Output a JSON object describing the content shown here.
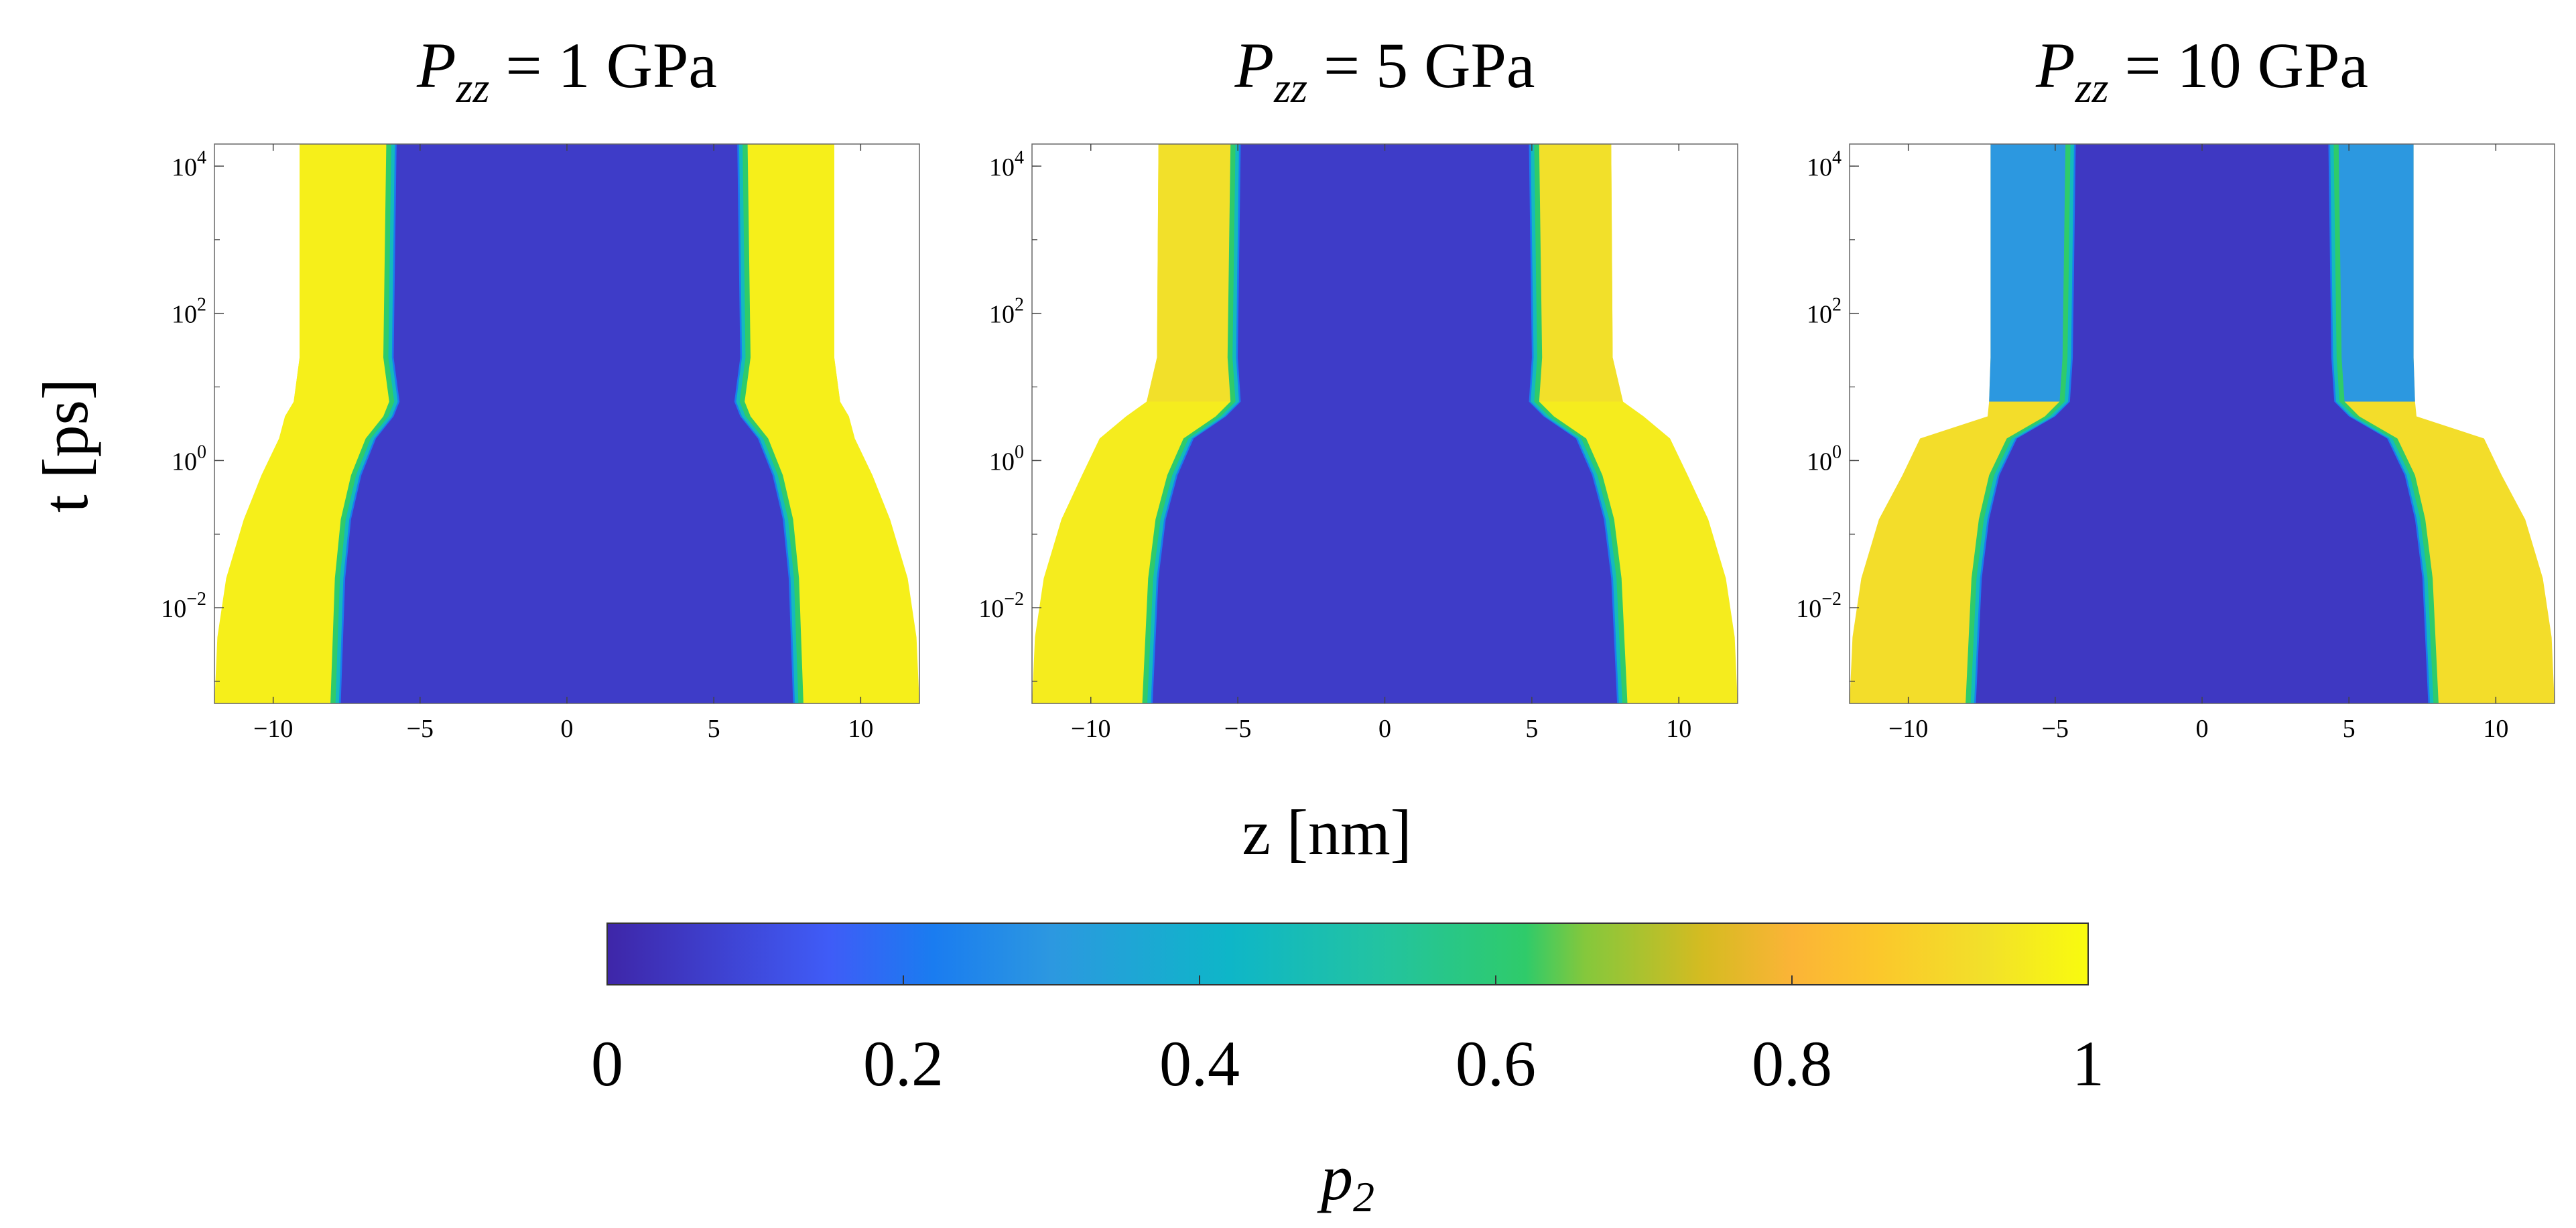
{
  "chart_data": {
    "type": "heatmap",
    "shared": {
      "xlabel": "z [nm]",
      "ylabel": "t [ps]",
      "xlim": [
        -12,
        12
      ],
      "xticks": [
        -10,
        -5,
        0,
        5,
        10
      ],
      "xtick_labels": [
        "−10",
        "−5",
        "0",
        "5",
        "10"
      ],
      "ylim_log10": [
        -3.3,
        4.3
      ],
      "yticks_log10": [
        -2,
        0,
        2,
        4
      ],
      "ytick_labels": [
        {
          "base": "10",
          "exp": "−2"
        },
        {
          "base": "10",
          "exp": "0"
        },
        {
          "base": "10",
          "exp": "2"
        },
        {
          "base": "10",
          "exp": "4"
        }
      ]
    },
    "panels": [
      {
        "title_italic": "P",
        "title_sub": "zz",
        "title_value": " = 1 GPa",
        "profile": [
          [
            -3.3,
            12.0
          ],
          [
            -2.4,
            11.9
          ],
          [
            -1.6,
            11.6
          ],
          [
            -0.8,
            11.0
          ],
          [
            -0.2,
            10.4
          ],
          [
            0.3,
            9.8
          ],
          [
            0.6,
            9.6
          ],
          [
            0.8,
            9.3
          ],
          [
            1.4,
            9.1
          ],
          [
            4.3,
            9.1
          ]
        ],
        "interface": [
          [
            -3.3,
            7.7
          ],
          [
            -1.6,
            7.55
          ],
          [
            -0.8,
            7.35
          ],
          [
            -0.2,
            7.0
          ],
          [
            0.3,
            6.5
          ],
          [
            0.6,
            5.9
          ],
          [
            0.8,
            5.7
          ],
          [
            1.4,
            5.9
          ],
          [
            4.3,
            5.8
          ]
        ],
        "core_p2": 0.06,
        "shell_p2": 0.97,
        "outer_p2": 0.97
      },
      {
        "title_italic": "P",
        "title_sub": "zz",
        "title_value": " = 5 GPa",
        "profile": [
          [
            -3.3,
            12.0
          ],
          [
            -2.4,
            11.9
          ],
          [
            -1.6,
            11.6
          ],
          [
            -0.8,
            11.0
          ],
          [
            -0.2,
            10.3
          ],
          [
            0.3,
            9.7
          ],
          [
            0.6,
            8.8
          ],
          [
            0.8,
            8.1
          ],
          [
            1.4,
            7.75
          ],
          [
            4.3,
            7.7
          ]
        ],
        "interface": [
          [
            -3.3,
            7.9
          ],
          [
            -1.6,
            7.7
          ],
          [
            -0.8,
            7.45
          ],
          [
            -0.2,
            7.05
          ],
          [
            0.3,
            6.5
          ],
          [
            0.6,
            5.4
          ],
          [
            0.8,
            4.9
          ],
          [
            1.4,
            5.0
          ],
          [
            4.3,
            4.9
          ]
        ],
        "core_p2": 0.06,
        "shell_p2": 0.93,
        "outer_p2": 0.96
      },
      {
        "title_italic": "P",
        "title_sub": "zz",
        "title_value": " = 10 GPa",
        "profile": [
          [
            -3.3,
            12.0
          ],
          [
            -2.4,
            11.9
          ],
          [
            -1.6,
            11.6
          ],
          [
            -0.8,
            11.0
          ],
          [
            -0.2,
            10.2
          ],
          [
            0.3,
            9.6
          ],
          [
            0.6,
            7.3
          ],
          [
            0.8,
            7.25
          ],
          [
            1.4,
            7.2
          ],
          [
            4.3,
            7.2
          ]
        ],
        "interface": [
          [
            -3.3,
            7.7
          ],
          [
            -1.6,
            7.5
          ],
          [
            -0.8,
            7.25
          ],
          [
            -0.2,
            6.9
          ],
          [
            0.3,
            6.3
          ],
          [
            0.6,
            5.0
          ],
          [
            0.8,
            4.5
          ],
          [
            1.4,
            4.4
          ],
          [
            4.3,
            4.3
          ]
        ],
        "core_p2": 0.05,
        "shell_p2": 0.3,
        "outer_p2": 0.92
      }
    ],
    "colorbar": {
      "label": "p2",
      "label_base": "p",
      "label_sub": "2",
      "range": [
        0,
        1
      ],
      "ticks": [
        0,
        0.2,
        0.4,
        0.6,
        0.8,
        1
      ],
      "tick_labels": [
        "0",
        "0.2",
        "0.4",
        "0.6",
        "0.8",
        "1"
      ],
      "colormap": "parula",
      "stops": [
        [
          0.0,
          "#3e26a8"
        ],
        [
          0.15,
          "#3f5cf7"
        ],
        [
          0.22,
          "#1a7cf0"
        ],
        [
          0.3,
          "#2c98e0"
        ],
        [
          0.42,
          "#0eb6c8"
        ],
        [
          0.52,
          "#22c3a2"
        ],
        [
          0.62,
          "#2fcb6a"
        ],
        [
          0.66,
          "#84c83c"
        ],
        [
          0.74,
          "#d5bb21"
        ],
        [
          0.8,
          "#fbb437"
        ],
        [
          0.86,
          "#fbc82b"
        ],
        [
          0.93,
          "#f2e02a"
        ],
        [
          1.0,
          "#f9fb0e"
        ]
      ]
    }
  }
}
